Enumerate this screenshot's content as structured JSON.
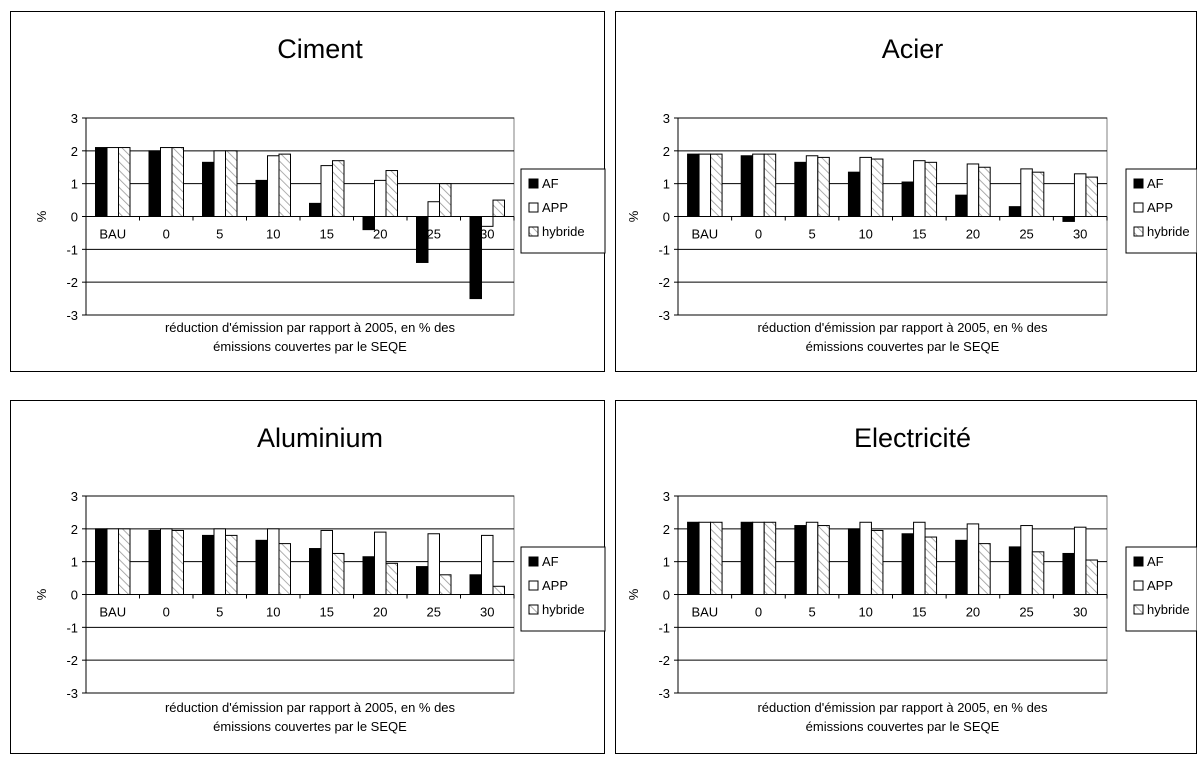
{
  "chart_data": [
    {
      "type": "bar",
      "title": "Ciment",
      "ylabel": "%",
      "xlabel": "réduction d'émission par rapport à 2005, en % des émissions couvertes par le SEQE",
      "xlabel_lines": [
        "réduction d'émission par rapport à 2005, en % des",
        "émissions couvertes par le SEQE"
      ],
      "categories": [
        "BAU",
        "0",
        "5",
        "10",
        "15",
        "20",
        "25",
        "30"
      ],
      "ylim": [
        -3,
        3
      ],
      "yticks": [
        "3",
        "2",
        "1",
        "0",
        "-1",
        "-2",
        "-3"
      ],
      "grid": true,
      "legend_position": "right",
      "series": [
        {
          "name": "AF",
          "values": [
            2.1,
            2.0,
            1.65,
            1.1,
            0.4,
            -0.4,
            -1.4,
            -2.5
          ]
        },
        {
          "name": "APP",
          "values": [
            2.1,
            2.1,
            2.0,
            1.85,
            1.55,
            1.1,
            0.45,
            -0.3
          ]
        },
        {
          "name": "hybride",
          "values": [
            2.1,
            2.1,
            2.0,
            1.9,
            1.7,
            1.4,
            1.0,
            0.5
          ]
        }
      ]
    },
    {
      "type": "bar",
      "title": "Acier",
      "ylabel": "%",
      "xlabel": "réduction d'émission par rapport à 2005, en % des émissions couvertes par le SEQE",
      "xlabel_lines": [
        "réduction d'émission par rapport à 2005, en % des",
        "émissions couvertes par le SEQE"
      ],
      "categories": [
        "BAU",
        "0",
        "5",
        "10",
        "15",
        "20",
        "25",
        "30"
      ],
      "ylim": [
        -3,
        3
      ],
      "yticks": [
        "3",
        "2",
        "1",
        "0",
        "-1",
        "-2",
        "-3"
      ],
      "grid": true,
      "legend_position": "right",
      "series": [
        {
          "name": "AF",
          "values": [
            1.9,
            1.85,
            1.65,
            1.35,
            1.05,
            0.65,
            0.3,
            -0.15
          ]
        },
        {
          "name": "APP",
          "values": [
            1.9,
            1.9,
            1.85,
            1.8,
            1.7,
            1.6,
            1.45,
            1.3
          ]
        },
        {
          "name": "hybride",
          "values": [
            1.9,
            1.9,
            1.8,
            1.75,
            1.65,
            1.5,
            1.35,
            1.2
          ]
        }
      ]
    },
    {
      "type": "bar",
      "title": "Aluminium",
      "ylabel": "%",
      "xlabel": "réduction d'émission par rapport à 2005, en % des émissions couvertes par le SEQE",
      "xlabel_lines": [
        "réduction d'émission par rapport à 2005, en % des",
        "émissions couvertes par le SEQE"
      ],
      "categories": [
        "BAU",
        "0",
        "5",
        "10",
        "15",
        "20",
        "25",
        "30"
      ],
      "ylim": [
        -3,
        3
      ],
      "yticks": [
        "3",
        "2",
        "1",
        "0",
        "-1",
        "-2",
        "-3"
      ],
      "grid": true,
      "legend_position": "right",
      "series": [
        {
          "name": "AF",
          "values": [
            2.0,
            1.95,
            1.8,
            1.65,
            1.4,
            1.15,
            0.85,
            0.6
          ]
        },
        {
          "name": "APP",
          "values": [
            2.0,
            2.0,
            2.0,
            2.0,
            1.95,
            1.9,
            1.85,
            1.8
          ]
        },
        {
          "name": "hybride",
          "values": [
            2.0,
            1.95,
            1.8,
            1.55,
            1.25,
            0.95,
            0.6,
            0.25
          ]
        }
      ]
    },
    {
      "type": "bar",
      "title": "Electricité",
      "ylabel": "%",
      "xlabel": "réduction d'émission par rapport à 2005, en % des émissions couvertes par le SEQE",
      "xlabel_lines": [
        "réduction d'émission par rapport à 2005, en % des",
        "émissions couvertes par le SEQE"
      ],
      "categories": [
        "BAU",
        "0",
        "5",
        "10",
        "15",
        "20",
        "25",
        "30"
      ],
      "ylim": [
        -3,
        3
      ],
      "yticks": [
        "3",
        "2",
        "1",
        "0",
        "-1",
        "-2",
        "-3"
      ],
      "grid": true,
      "legend_position": "right",
      "series": [
        {
          "name": "AF",
          "values": [
            2.2,
            2.2,
            2.1,
            2.0,
            1.85,
            1.65,
            1.45,
            1.25
          ]
        },
        {
          "name": "APP",
          "values": [
            2.2,
            2.2,
            2.2,
            2.2,
            2.2,
            2.15,
            2.1,
            2.05
          ]
        },
        {
          "name": "hybride",
          "values": [
            2.2,
            2.2,
            2.1,
            1.95,
            1.75,
            1.55,
            1.3,
            1.05
          ]
        }
      ]
    }
  ]
}
